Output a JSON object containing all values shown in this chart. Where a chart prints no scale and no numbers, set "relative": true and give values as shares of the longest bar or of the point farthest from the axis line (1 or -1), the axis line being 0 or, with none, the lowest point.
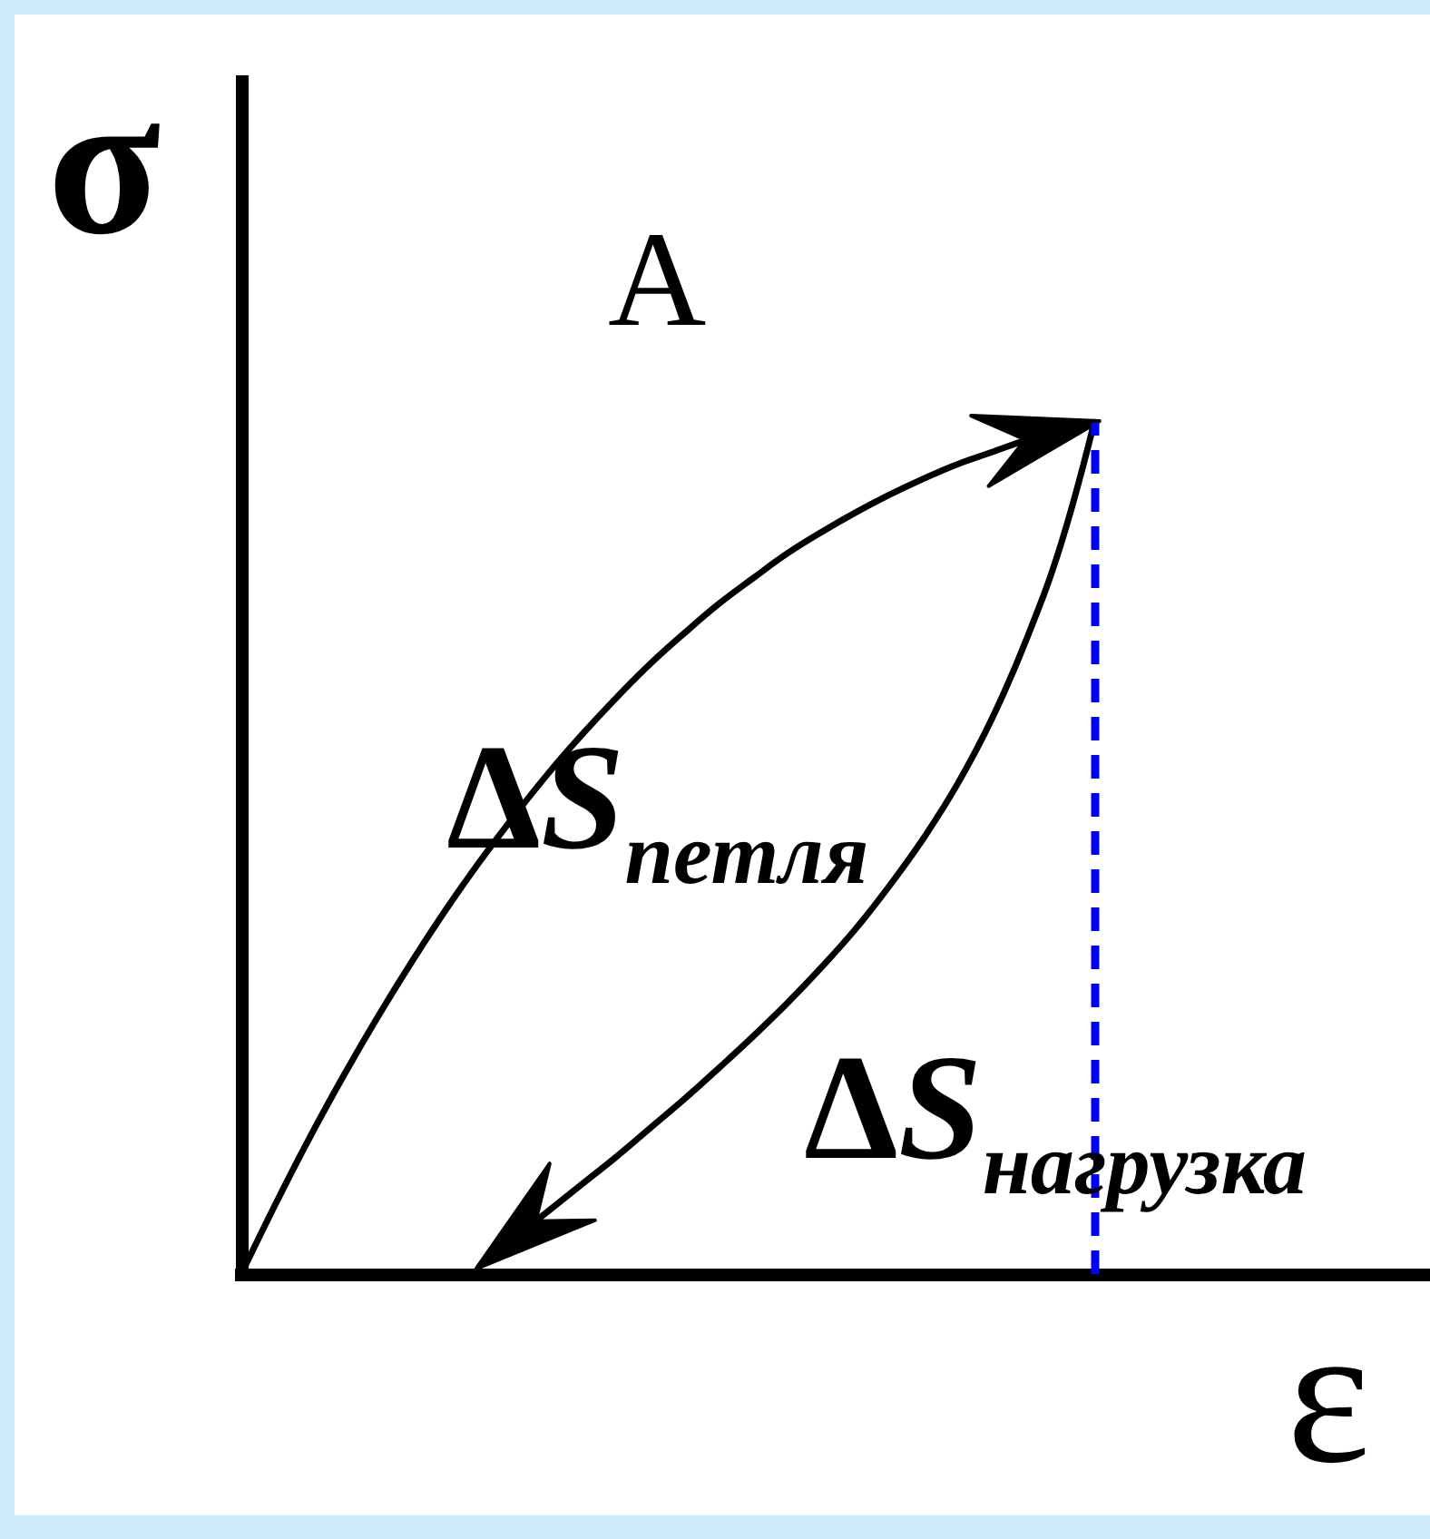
{
  "chart_data": {
    "type": "line",
    "relative": true,
    "xlabel": "ε",
    "ylabel": "σ",
    "annotations": [
      "A",
      "ΔS$_{петля}$",
      "ΔS$_{нагрузка}$"
    ],
    "categories": [
      null,
      null,
      null,
      null,
      null,
      null,
      null,
      null,
      null,
      null,
      null,
      null,
      null,
      null,
      null,
      null,
      null,
      null,
      null,
      null,
      null,
      null,
      null,
      null,
      null,
      null,
      null,
      null,
      null,
      null,
      null,
      null,
      null,
      null,
      null,
      null
    ],
    "series": [
      {
        "color": "#000000",
        "values": [
          0,
          0.082,
          0.16,
          0.233,
          0.302,
          0.367,
          0.428,
          0.485,
          0.538,
          0.588,
          0.634,
          0.677,
          0.717,
          0.753,
          0.787,
          0.817,
          0.846,
          0.871,
          0.894,
          0.915,
          0.934,
          0.951,
          0.965,
          0.979,
          0.99,
          1,
          null,
          null,
          null,
          null,
          null,
          null,
          null,
          null,
          null,
          null
        ]
      },
      {
        "color": "#000000",
        "values": [
          null,
          null,
          null,
          null,
          null,
          null,
          null,
          0.01,
          0.042,
          0.074,
          0.106,
          0.138,
          0.172,
          0.206,
          0.242,
          0.279,
          0.318,
          0.36,
          0.405,
          0.456,
          0.512,
          0.576,
          0.652,
          0.744,
          0.854,
          1,
          null,
          null,
          null,
          null,
          null,
          null,
          null,
          null,
          null,
          null
        ]
      }
    ],
    "marker": "none"
  }
}
